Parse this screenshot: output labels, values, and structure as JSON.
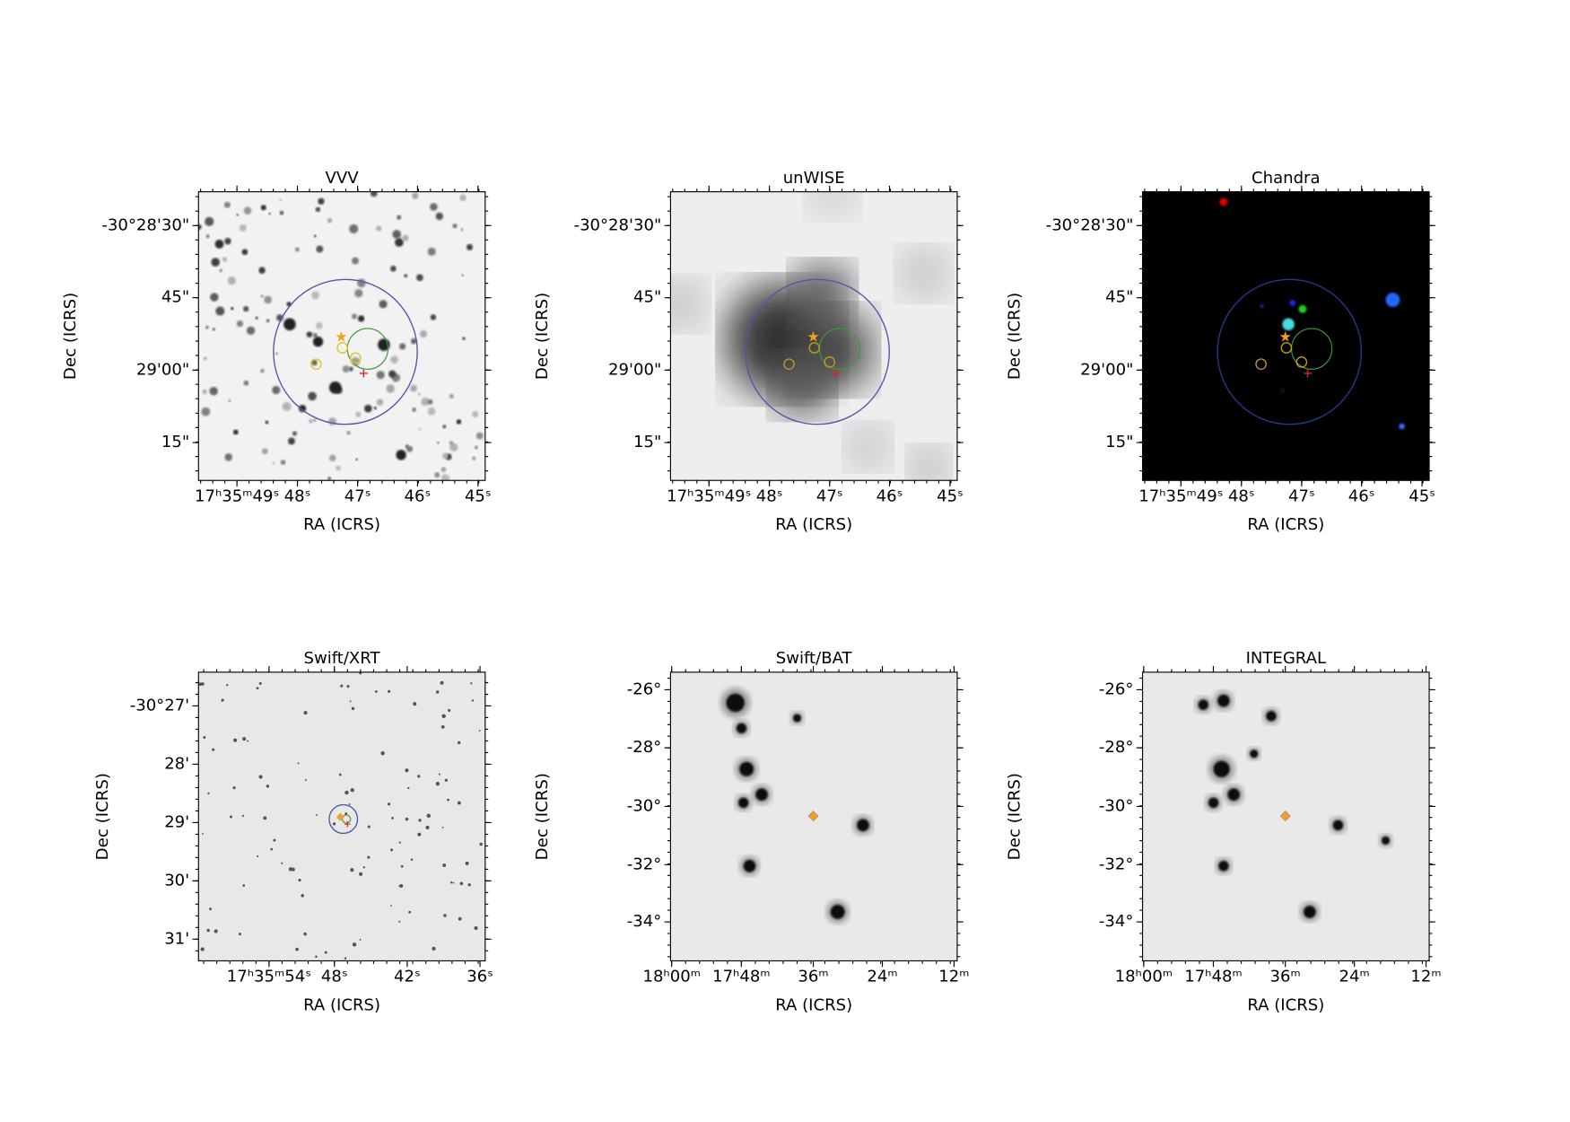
{
  "panels": [
    {
      "title": "VVV",
      "xlabel": "RA (ICRS)",
      "ylabel": "Dec (ICRS)",
      "xticks": [
        "17ʰ35ᵐ49ˢ",
        "48ˢ",
        "47ˢ",
        "46ˢ",
        "45ˢ"
      ],
      "yticks": [
        "-30°28'30\"",
        "45\"",
        "29'00\"",
        "15\""
      ]
    },
    {
      "title": "unWISE",
      "xlabel": "RA (ICRS)",
      "ylabel": "Dec (ICRS)",
      "xticks": [
        "17ʰ35ᵐ49ˢ",
        "48ˢ",
        "47ˢ",
        "46ˢ",
        "45ˢ"
      ],
      "yticks": [
        "-30°28'30\"",
        "45\"",
        "29'00\"",
        "15\""
      ]
    },
    {
      "title": "Chandra",
      "xlabel": "RA (ICRS)",
      "ylabel": "Dec (ICRS)",
      "xticks": [
        "17ʰ35ᵐ49ˢ",
        "48ˢ",
        "47ˢ",
        "46ˢ",
        "45ˢ"
      ],
      "yticks": [
        "-30°28'30\"",
        "45\"",
        "29'00\"",
        "15\""
      ]
    },
    {
      "title": "Swift/XRT",
      "xlabel": "RA (ICRS)",
      "ylabel": "Dec (ICRS)",
      "xticks": [
        "17ʰ35ᵐ54ˢ",
        "48ˢ",
        "42ˢ",
        "36ˢ"
      ],
      "yticks": [
        "-30°27'",
        "28'",
        "29'",
        "30'",
        "31'"
      ]
    },
    {
      "title": "Swift/BAT",
      "xlabel": "RA (ICRS)",
      "ylabel": "Dec (ICRS)",
      "xticks": [
        "18ʰ00ᵐ",
        "17ʰ48ᵐ",
        "36ᵐ",
        "24ᵐ",
        "12ᵐ"
      ],
      "yticks": [
        "-26°",
        "-28°",
        "-30°",
        "-32°",
        "-34°"
      ]
    },
    {
      "title": "INTEGRAL",
      "xlabel": "RA (ICRS)",
      "ylabel": "Dec (ICRS)",
      "xticks": [
        "18ʰ00ᵐ",
        "17ʰ48ᵐ",
        "36ᵐ",
        "24ᵐ",
        "12ᵐ"
      ],
      "yticks": [
        "-26°",
        "-28°",
        "-30°",
        "-32°",
        "-34°"
      ]
    }
  ]
}
